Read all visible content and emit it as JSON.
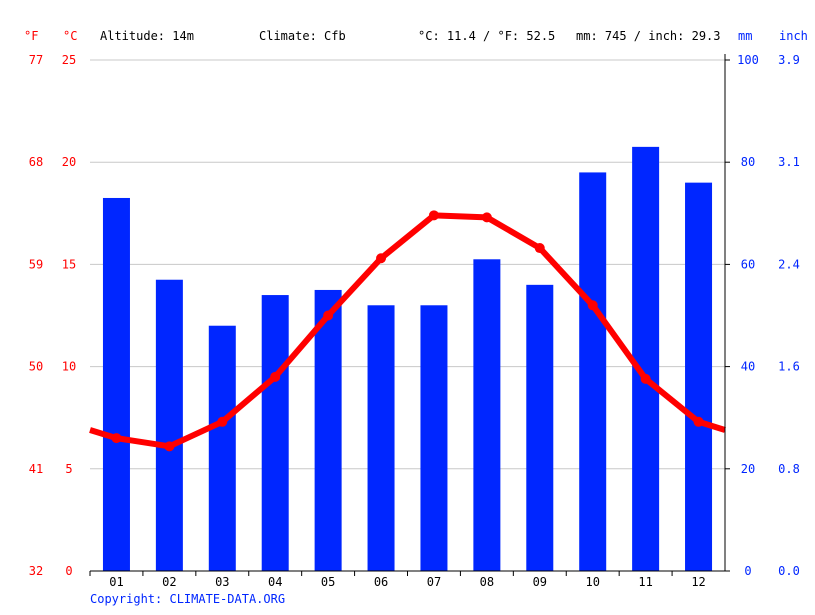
{
  "chart_data": {
    "type": "bar+line",
    "header": {
      "altitude": "Altitude: 14m",
      "climate": "Climate: Cfb",
      "temp_avg": "°C: 11.4 / °F: 52.5",
      "precip_total": "mm: 745 / inch: 29.3"
    },
    "axis_units": {
      "f": "°F",
      "c": "°C",
      "mm": "mm",
      "inch": "inch"
    },
    "categories": [
      "01",
      "02",
      "03",
      "04",
      "05",
      "06",
      "07",
      "08",
      "09",
      "10",
      "11",
      "12"
    ],
    "temp_ticks_c": [
      "0",
      "5",
      "10",
      "15",
      "20",
      "25"
    ],
    "temp_ticks_f": [
      "32",
      "41",
      "50",
      "59",
      "68",
      "77"
    ],
    "precip_ticks_mm": [
      "0",
      "20",
      "40",
      "60",
      "80",
      "100"
    ],
    "precip_ticks_inch": [
      "0.0",
      "0.8",
      "1.6",
      "2.4",
      "3.1",
      "3.9"
    ],
    "ylim_c": [
      0,
      25
    ],
    "ylim_mm": [
      0,
      100
    ],
    "grid": true,
    "series": [
      {
        "kind": "bar",
        "unit": "mm",
        "values": [
          73,
          57,
          48,
          54,
          55,
          52,
          52,
          61,
          56,
          78,
          83,
          76
        ]
      },
      {
        "kind": "line",
        "unit": "°C",
        "values": [
          6.5,
          6.1,
          7.3,
          9.5,
          12.5,
          15.3,
          17.4,
          17.3,
          15.8,
          13.0,
          9.4,
          7.3
        ]
      }
    ],
    "colors": {
      "bar": "#0026ff",
      "line": "#ff0000",
      "temp_axis": "#ff0000",
      "precip_axis": "#0026ff"
    },
    "copyright": "Copyright: CLIMATE-DATA.ORG"
  }
}
